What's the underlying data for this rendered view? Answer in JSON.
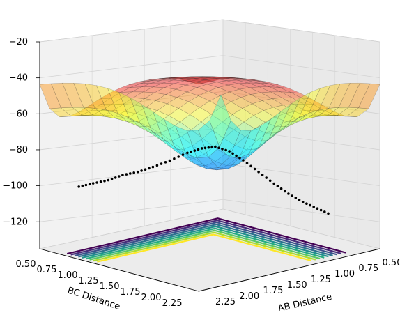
{
  "chart_data": {
    "type": "surface3d",
    "title": "",
    "xlabel": "AB Distance",
    "ylabel": "BC Distance",
    "zlabel": "",
    "x_ticks": [
      "0.50",
      "0.75",
      "1.00",
      "1.25",
      "1.50",
      "1.75",
      "2.00",
      "2.25"
    ],
    "y_ticks": [
      "0.50",
      "0.75",
      "1.00",
      "1.25",
      "1.50",
      "1.75",
      "2.00",
      "2.25"
    ],
    "z_ticks": [
      "−20",
      "−40",
      "−60",
      "−80",
      "−100",
      "−120"
    ],
    "xlim": [
      0.5,
      2.4
    ],
    "ylim": [
      0.5,
      2.4
    ],
    "zlim": [
      -135,
      -20
    ],
    "colormap_surface": "jet",
    "colormap_contours": "viridis",
    "grid": true,
    "trajectory": {
      "color": "#000000",
      "points": [
        {
          "ab": 2.2,
          "bc": 0.74,
          "v": -100
        },
        {
          "ab": 2.05,
          "bc": 0.74,
          "v": -100
        },
        {
          "ab": 1.9,
          "bc": 0.75,
          "v": -100
        },
        {
          "ab": 1.75,
          "bc": 0.75,
          "v": -99
        },
        {
          "ab": 1.6,
          "bc": 0.76,
          "v": -99
        },
        {
          "ab": 1.45,
          "bc": 0.77,
          "v": -98
        },
        {
          "ab": 1.3,
          "bc": 0.8,
          "v": -96
        },
        {
          "ab": 1.15,
          "bc": 0.84,
          "v": -93
        },
        {
          "ab": 1.05,
          "bc": 0.9,
          "v": -91
        },
        {
          "ab": 0.98,
          "bc": 0.98,
          "v": -90
        },
        {
          "ab": 0.92,
          "bc": 1.08,
          "v": -92
        },
        {
          "ab": 0.88,
          "bc": 1.2,
          "v": -96
        },
        {
          "ab": 0.85,
          "bc": 1.35,
          "v": -101
        },
        {
          "ab": 0.82,
          "bc": 1.5,
          "v": -106
        },
        {
          "ab": 0.8,
          "bc": 1.65,
          "v": -110
        },
        {
          "ab": 0.78,
          "bc": 1.8,
          "v": -113
        },
        {
          "ab": 0.76,
          "bc": 1.95,
          "v": -115
        },
        {
          "ab": 0.74,
          "bc": 2.1,
          "v": -117
        }
      ]
    }
  }
}
